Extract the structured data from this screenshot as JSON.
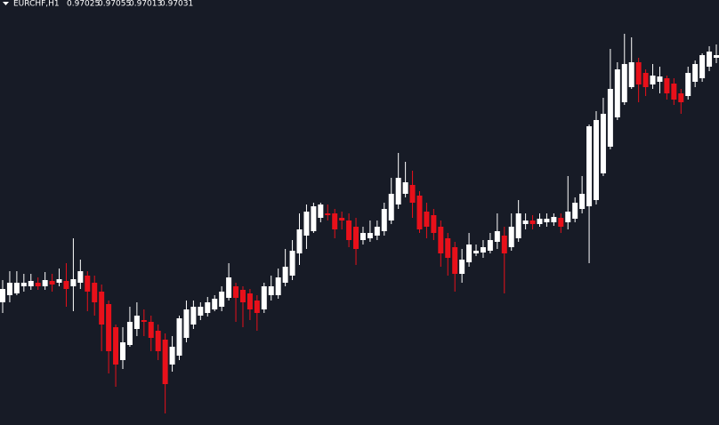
{
  "chart_data": {
    "type": "candlestick",
    "title": "EURCHF,H1",
    "up_color": "#ffffff",
    "down_color": "#e8101a",
    "background": "#171b26",
    "ylim": [
      0.96199,
      0.97155
    ],
    "open": [
      0.96475,
      0.96491,
      0.96495,
      0.96511,
      0.96511,
      0.96519,
      0.96511,
      0.96523,
      0.96519,
      0.96523,
      0.96511,
      0.96519,
      0.96535,
      0.96519,
      0.96499,
      0.96471,
      0.96419,
      0.96345,
      0.96379,
      0.96415,
      0.96435,
      0.96431,
      0.96411,
      0.96391,
      0.96335,
      0.96355,
      0.96395,
      0.96425,
      0.96445,
      0.96451,
      0.96459,
      0.96465,
      0.96485,
      0.96511,
      0.96503,
      0.96495,
      0.96479,
      0.96459,
      0.96491,
      0.96491,
      0.96519,
      0.96535,
      0.96585,
      0.96625,
      0.96635,
      0.96665,
      0.96675,
      0.96675,
      0.96665,
      0.96659,
      0.96645,
      0.96615,
      0.96619,
      0.96625,
      0.96635,
      0.96659,
      0.96695,
      0.96719,
      0.96739,
      0.96715,
      0.96679,
      0.96671,
      0.96645,
      0.96619,
      0.96599,
      0.96539,
      0.96565,
      0.96585,
      0.96587,
      0.96591,
      0.96611,
      0.96625,
      0.96599,
      0.96619,
      0.96651,
      0.96659,
      0.96651,
      0.96655,
      0.96655,
      0.96665,
      0.96655,
      0.96663,
      0.96685,
      0.96691,
      0.96705,
      0.96765,
      0.96825,
      0.96891,
      0.96925,
      0.96959,
      0.97015,
      0.96991,
      0.96965,
      0.96971,
      0.96979,
      0.96967,
      0.96945,
      0.96939,
      0.96971,
      0.96979,
      0.97005,
      0.97025
    ],
    "high": [
      0.96525,
      0.96545,
      0.96545,
      0.96539,
      0.96539,
      0.96531,
      0.96543,
      0.96539,
      0.96551,
      0.96563,
      0.96619,
      0.96571,
      0.96545,
      0.96535,
      0.96515,
      0.96479,
      0.96425,
      0.96419,
      0.96465,
      0.96475,
      0.96459,
      0.96445,
      0.96425,
      0.96405,
      0.96399,
      0.96445,
      0.96479,
      0.96479,
      0.96475,
      0.96487,
      0.96491,
      0.96511,
      0.96563,
      0.96519,
      0.96511,
      0.96505,
      0.96491,
      0.96519,
      0.96535,
      0.96551,
      0.96595,
      0.96615,
      0.96675,
      0.96695,
      0.96699,
      0.96699,
      0.96695,
      0.96685,
      0.96679,
      0.96675,
      0.96665,
      0.96645,
      0.96659,
      0.96659,
      0.96699,
      0.96755,
      0.96811,
      0.96791,
      0.96771,
      0.96725,
      0.96699,
      0.96685,
      0.96659,
      0.96631,
      0.96611,
      0.96595,
      0.96631,
      0.96605,
      0.96615,
      0.96631,
      0.96675,
      0.96645,
      0.96675,
      0.96705,
      0.96675,
      0.96671,
      0.96675,
      0.96675,
      0.96675,
      0.96675,
      0.96759,
      0.96711,
      0.96759,
      0.96875,
      0.96905,
      0.96935,
      0.97045,
      0.97015,
      0.97079,
      0.97071,
      0.97025,
      0.96999,
      0.97011,
      0.97005,
      0.96985,
      0.96979,
      0.96955,
      0.97005,
      0.97019,
      0.97035,
      0.97051,
      0.97055
    ],
    "low": [
      0.96451,
      0.96475,
      0.96491,
      0.96499,
      0.96503,
      0.96503,
      0.96503,
      0.96499,
      0.96511,
      0.96465,
      0.96455,
      0.96505,
      0.96455,
      0.96445,
      0.96365,
      0.96315,
      0.96285,
      0.96325,
      0.96375,
      0.96399,
      0.96399,
      0.96365,
      0.96345,
      0.96225,
      0.96319,
      0.96345,
      0.96385,
      0.96415,
      0.96435,
      0.96443,
      0.96455,
      0.96455,
      0.96479,
      0.96431,
      0.96419,
      0.96435,
      0.96411,
      0.96451,
      0.96479,
      0.96483,
      0.96511,
      0.96525,
      0.96559,
      0.96595,
      0.96631,
      0.96655,
      0.96659,
      0.96619,
      0.96639,
      0.96599,
      0.96559,
      0.96605,
      0.96611,
      0.96615,
      0.96625,
      0.96651,
      0.96685,
      0.96711,
      0.96665,
      0.96631,
      0.96619,
      0.96615,
      0.96555,
      0.96535,
      0.96499,
      0.96519,
      0.96555,
      0.96579,
      0.96575,
      0.96585,
      0.96595,
      0.96495,
      0.96591,
      0.96611,
      0.96639,
      0.96639,
      0.96645,
      0.96645,
      0.96647,
      0.96631,
      0.96639,
      0.96655,
      0.96675,
      0.96563,
      0.96695,
      0.96759,
      0.96819,
      0.96885,
      0.96919,
      0.96955,
      0.96925,
      0.96939,
      0.96955,
      0.96945,
      0.96931,
      0.96919,
      0.96899,
      0.96931,
      0.96959,
      0.96971,
      0.96995,
      0.97013
    ],
    "close": [
      0.96505,
      0.96519,
      0.96519,
      0.96519,
      0.96523,
      0.96511,
      0.96525,
      0.96515,
      0.96527,
      0.96505,
      0.96527,
      0.96545,
      0.96499,
      0.96475,
      0.96425,
      0.96365,
      0.96335,
      0.96385,
      0.96431,
      0.96445,
      0.96431,
      0.96395,
      0.96365,
      0.96291,
      0.96375,
      0.96439,
      0.96459,
      0.96465,
      0.96465,
      0.96475,
      0.96483,
      0.96499,
      0.96531,
      0.96485,
      0.96475,
      0.96459,
      0.96451,
      0.96511,
      0.96511,
      0.96531,
      0.96555,
      0.96591,
      0.96639,
      0.96679,
      0.96691,
      0.96695,
      0.96671,
      0.96639,
      0.96659,
      0.96615,
      0.96595,
      0.96631,
      0.96631,
      0.96645,
      0.96685,
      0.96719,
      0.96755,
      0.96745,
      0.96699,
      0.96639,
      0.96645,
      0.96631,
      0.96585,
      0.96575,
      0.96539,
      0.96571,
      0.96605,
      0.96591,
      0.96599,
      0.96615,
      0.96635,
      0.96585,
      0.96645,
      0.96675,
      0.96659,
      0.96651,
      0.96663,
      0.96663,
      0.96667,
      0.96645,
      0.96679,
      0.96699,
      0.96719,
      0.96871,
      0.96885,
      0.96899,
      0.96955,
      0.96999,
      0.97011,
      0.97015,
      0.96965,
      0.96959,
      0.96985,
      0.96983,
      0.96945,
      0.96931,
      0.96925,
      0.96991,
      0.97011,
      0.97031,
      0.97039,
      0.97031
    ]
  }
}
